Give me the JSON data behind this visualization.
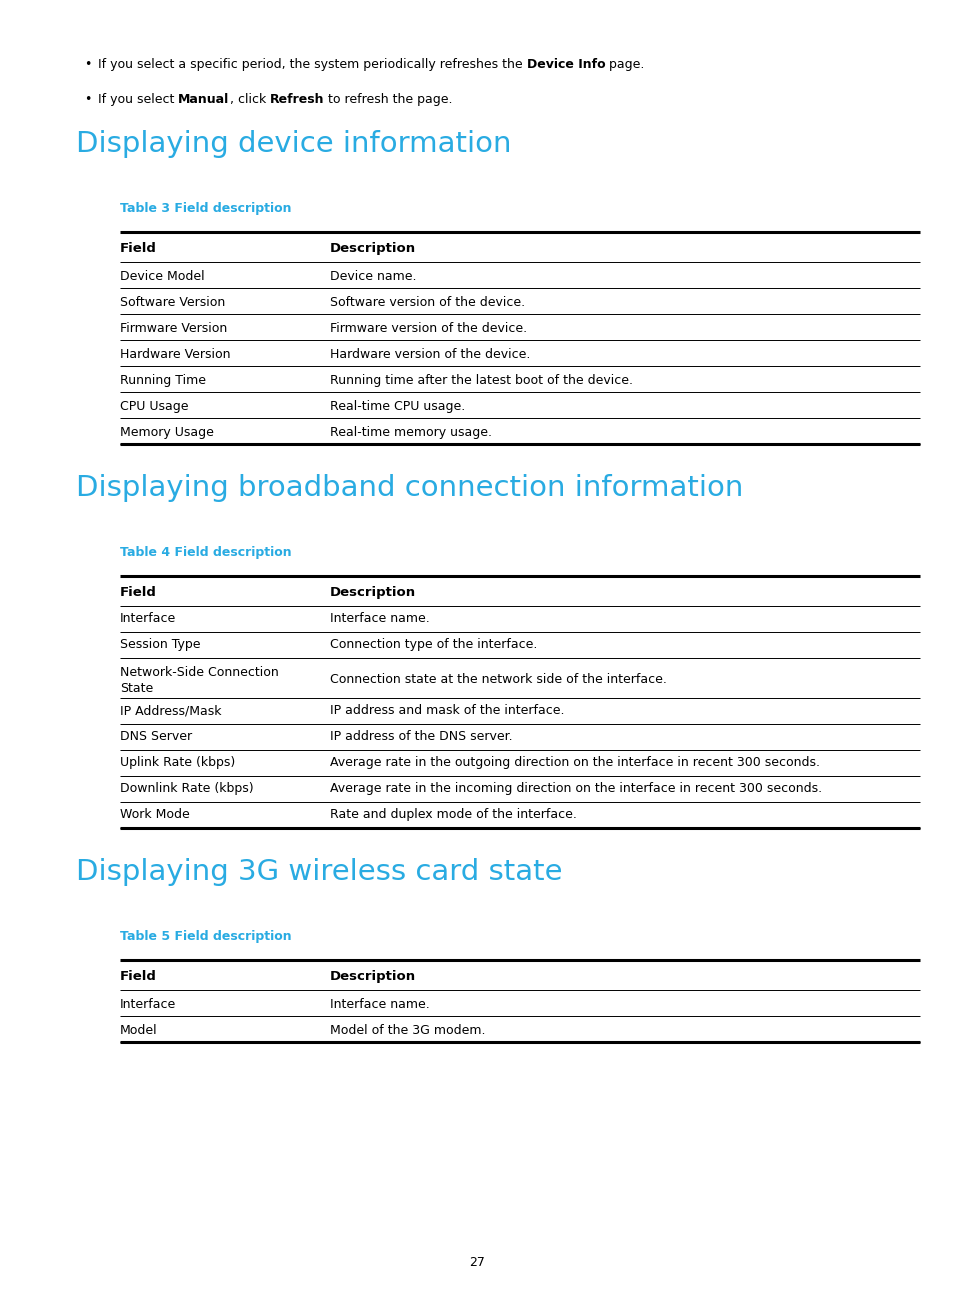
{
  "page_bg": "#ffffff",
  "text_color": "#000000",
  "cyan_color": "#29abe2",
  "cyan_dark": "#29abe2",
  "section1_title": "Displaying device information",
  "table1_caption": "Table 3 Field description",
  "table1_headers": [
    "Field",
    "Description"
  ],
  "table1_rows": [
    [
      "Device Model",
      "Device name."
    ],
    [
      "Software Version",
      "Software version of the device."
    ],
    [
      "Firmware Version",
      "Firmware version of the device."
    ],
    [
      "Hardware Version",
      "Hardware version of the device."
    ],
    [
      "Running Time",
      "Running time after the latest boot of the device."
    ],
    [
      "CPU Usage",
      "Real-time CPU usage."
    ],
    [
      "Memory Usage",
      "Real-time memory usage."
    ]
  ],
  "section2_title": "Displaying broadband connection information",
  "table2_caption": "Table 4 Field description",
  "table2_headers": [
    "Field",
    "Description"
  ],
  "table2_rows": [
    [
      "Interface",
      "Interface name."
    ],
    [
      "Session Type",
      "Connection type of the interface."
    ],
    [
      "Network-Side Connection\nState",
      "Connection state at the network side of the interface."
    ],
    [
      "IP Address/Mask",
      "IP address and mask of the interface."
    ],
    [
      "DNS Server",
      "IP address of the DNS server."
    ],
    [
      "Uplink Rate (kbps)",
      "Average rate in the outgoing direction on the interface in recent 300 seconds."
    ],
    [
      "Downlink Rate (kbps)",
      "Average rate in the incoming direction on the interface in recent 300 seconds."
    ],
    [
      "Work Mode",
      "Rate and duplex mode of the interface."
    ]
  ],
  "section3_title": "Displaying 3G wireless card state",
  "table3_caption": "Table 5 Field description",
  "table3_headers": [
    "Field",
    "Description"
  ],
  "table3_rows": [
    [
      "Interface",
      "Interface name."
    ],
    [
      "Model",
      "Model of the 3G modem."
    ]
  ],
  "page_number": "27",
  "bullet1_plain1": "If you select a specific period, the system periodically refreshes the ",
  "bullet1_bold": "Device Info",
  "bullet1_plain2": " page.",
  "bullet2_plain1": "If you select ",
  "bullet2_bold1": "Manual",
  "bullet2_plain2": ", click ",
  "bullet2_bold2": "Refresh",
  "bullet2_plain3": " to refresh the page."
}
